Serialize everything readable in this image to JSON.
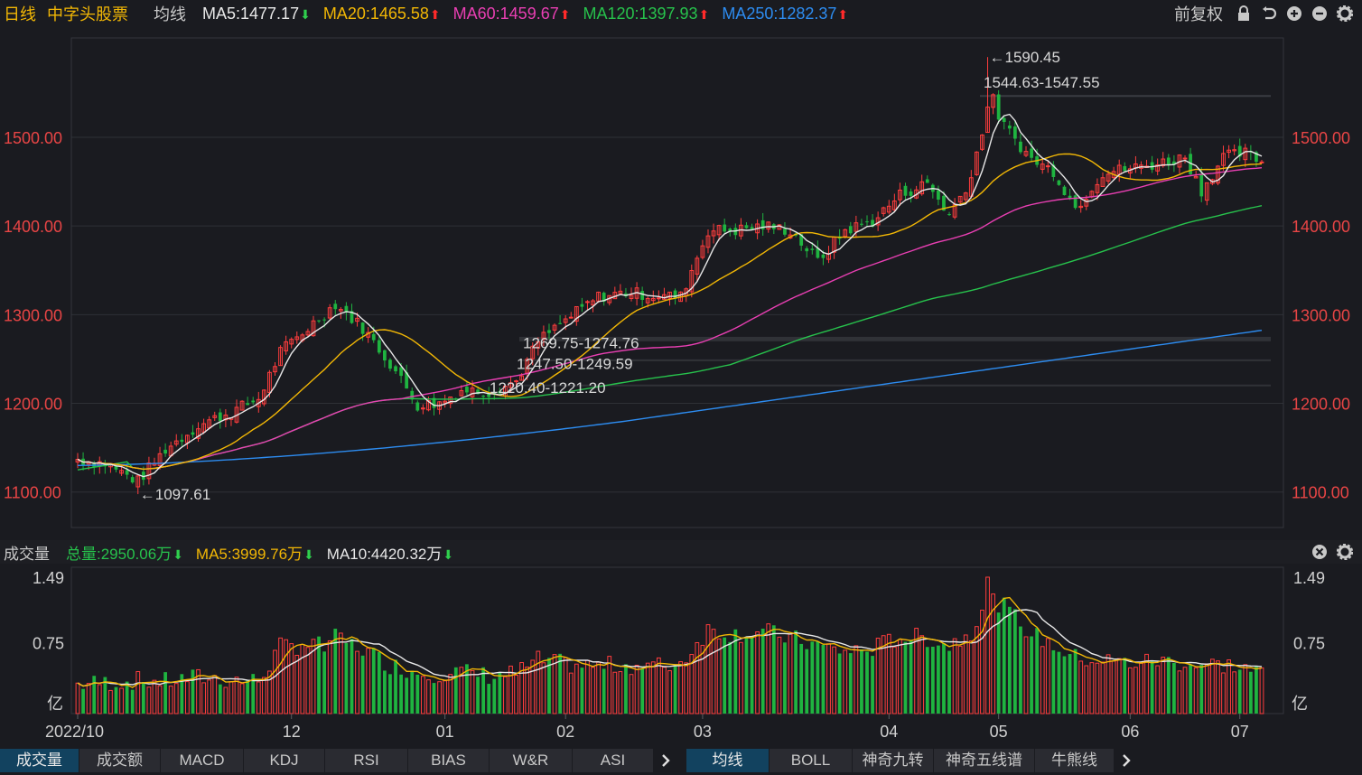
{
  "header": {
    "period": "日线",
    "stock_name": "中字头股票",
    "indicator": "均线",
    "ma_items": [
      {
        "label": "MA5:1477.17",
        "color": "#e8e8e8",
        "dir": "down"
      },
      {
        "label": "MA20:1465.58",
        "color": "#f2b705",
        "dir": "up"
      },
      {
        "label": "MA60:1459.67",
        "color": "#e93fb3",
        "dir": "up"
      },
      {
        "label": "MA120:1397.93",
        "color": "#27c24c",
        "dir": "up"
      },
      {
        "label": "MA250:1282.37",
        "color": "#2d8cf0",
        "dir": "up"
      }
    ],
    "adjust": "前复权",
    "tool_icons": [
      "lock-icon",
      "undo-icon",
      "zoom-in-icon",
      "zoom-out-icon",
      "gear-icon"
    ]
  },
  "volume_header": {
    "title": "成交量",
    "total": "总量:2950.06万",
    "ma5": "MA5:3999.76万",
    "ma10": "MA10:4420.32万",
    "icons": [
      "close-icon",
      "gear-icon"
    ]
  },
  "colors": {
    "up": "#ff3d3d",
    "down": "#1fb440",
    "ma5": "#e8e8e8",
    "ma20": "#f2b705",
    "ma60": "#e93fb3",
    "ma120": "#27c24c",
    "ma250": "#2d8cf0"
  },
  "chart_data": {
    "type": "candlestick",
    "price_axis": {
      "ylim": [
        1060,
        1610
      ],
      "ticks": [
        "1100.00",
        "1200.00",
        "1300.00",
        "1400.00",
        "1500.00"
      ]
    },
    "volume_axis": {
      "ylim": [
        0,
        1.49
      ],
      "ticks": [
        "0.75",
        "1.49"
      ],
      "unit": "亿"
    },
    "x_labels": [
      "2022/10",
      "12",
      "01",
      "02",
      "03",
      "04",
      "05",
      "06",
      "07"
    ],
    "anchors": [
      {
        "x": 0,
        "price": 1137,
        "vol": 0.28
      },
      {
        "x": 5,
        "price": 1132,
        "vol": 0.3
      },
      {
        "x": 11,
        "price": 1112,
        "vol": 0.32
      },
      {
        "x": 16,
        "price": 1148,
        "vol": 0.31
      },
      {
        "x": 22,
        "price": 1175,
        "vol": 0.36
      },
      {
        "x": 28,
        "price": 1190,
        "vol": 0.33
      },
      {
        "x": 33,
        "price": 1205,
        "vol": 0.32
      },
      {
        "x": 37,
        "price": 1258,
        "vol": 0.7
      },
      {
        "x": 42,
        "price": 1285,
        "vol": 0.72
      },
      {
        "x": 47,
        "price": 1312,
        "vol": 0.8
      },
      {
        "x": 52,
        "price": 1285,
        "vol": 0.68
      },
      {
        "x": 57,
        "price": 1245,
        "vol": 0.5
      },
      {
        "x": 62,
        "price": 1198,
        "vol": 0.42
      },
      {
        "x": 66,
        "price": 1200,
        "vol": 0.4
      },
      {
        "x": 70,
        "price": 1215,
        "vol": 0.42
      },
      {
        "x": 75,
        "price": 1213,
        "vol": 0.38
      },
      {
        "x": 80,
        "price": 1225,
        "vol": 0.4
      },
      {
        "x": 84,
        "price": 1270,
        "vol": 0.55
      },
      {
        "x": 90,
        "price": 1298,
        "vol": 0.5
      },
      {
        "x": 95,
        "price": 1320,
        "vol": 0.48
      },
      {
        "x": 100,
        "price": 1325,
        "vol": 0.5
      },
      {
        "x": 105,
        "price": 1322,
        "vol": 0.48
      },
      {
        "x": 110,
        "price": 1320,
        "vol": 0.52
      },
      {
        "x": 115,
        "price": 1395,
        "vol": 0.9
      },
      {
        "x": 120,
        "price": 1395,
        "vol": 0.85
      },
      {
        "x": 125,
        "price": 1400,
        "vol": 0.88
      },
      {
        "x": 130,
        "price": 1395,
        "vol": 0.8
      },
      {
        "x": 135,
        "price": 1360,
        "vol": 0.72
      },
      {
        "x": 140,
        "price": 1395,
        "vol": 0.65
      },
      {
        "x": 145,
        "price": 1405,
        "vol": 0.68
      },
      {
        "x": 150,
        "price": 1435,
        "vol": 0.82
      },
      {
        "x": 155,
        "price": 1448,
        "vol": 0.8
      },
      {
        "x": 159,
        "price": 1412,
        "vol": 0.72
      },
      {
        "x": 163,
        "price": 1455,
        "vol": 0.88
      },
      {
        "x": 166,
        "price": 1535,
        "vol": 1.3
      },
      {
        "x": 170,
        "price": 1505,
        "vol": 1.1
      },
      {
        "x": 174,
        "price": 1475,
        "vol": 0.85
      },
      {
        "x": 178,
        "price": 1462,
        "vol": 0.72
      },
      {
        "x": 182,
        "price": 1420,
        "vol": 0.58
      },
      {
        "x": 187,
        "price": 1460,
        "vol": 0.55
      },
      {
        "x": 192,
        "price": 1465,
        "vol": 0.52
      },
      {
        "x": 197,
        "price": 1470,
        "vol": 0.55
      },
      {
        "x": 202,
        "price": 1478,
        "vol": 0.52
      },
      {
        "x": 205,
        "price": 1440,
        "vol": 0.5
      },
      {
        "x": 209,
        "price": 1478,
        "vol": 0.5
      },
      {
        "x": 213,
        "price": 1482,
        "vol": 0.46
      },
      {
        "x": 216,
        "price": 1470,
        "vol": 0.4
      }
    ],
    "ma5_current": 1477.17,
    "ma20_current": 1465.58,
    "ma60_current": 1459.67,
    "ma120_current": 1397.93,
    "ma250_current": 1282.37,
    "annotations": {
      "low": "1097.61",
      "high": "1590.45",
      "range1": "1544.63-1547.55",
      "range2": "1269.75-1274.76",
      "range3": "1247.50-1249.59",
      "range4": "1220.40-1221.20"
    }
  },
  "bottom_tabs_left": [
    "成交量",
    "成交额",
    "MACD",
    "KDJ",
    "RSI",
    "BIAS",
    "W&R",
    "ASI"
  ],
  "bottom_tabs_right": [
    "均线",
    "BOLL",
    "神奇九转",
    "神奇五线谱",
    "牛熊线"
  ]
}
